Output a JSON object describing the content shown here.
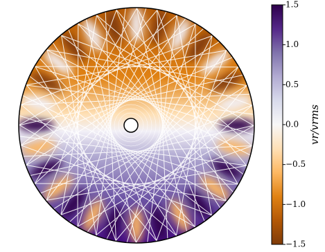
{
  "chart_data": {
    "type": "image",
    "colorbar": {
      "label": "vr/vrms",
      "clim": [
        -1.5,
        1.5
      ],
      "colors": [
        "#7f3b08",
        "#b35806",
        "#e08214",
        "#fdb863",
        "#fee0b6",
        "#f7f7f7",
        "#d8daeb",
        "#b2abd2",
        "#8073ac",
        "#542788",
        "#2d004b"
      ],
      "ticks": [
        {
          "value": -1.5,
          "label": "−1.5"
        },
        {
          "value": -1,
          "label": "−1.0"
        },
        {
          "value": -0.5,
          "label": "−0.5"
        },
        {
          "value": 0,
          "label": "0.0"
        },
        0.5,
        {
          "value": 1,
          "label": "1.0"
        },
        1.5
      ]
    }
  }
}
